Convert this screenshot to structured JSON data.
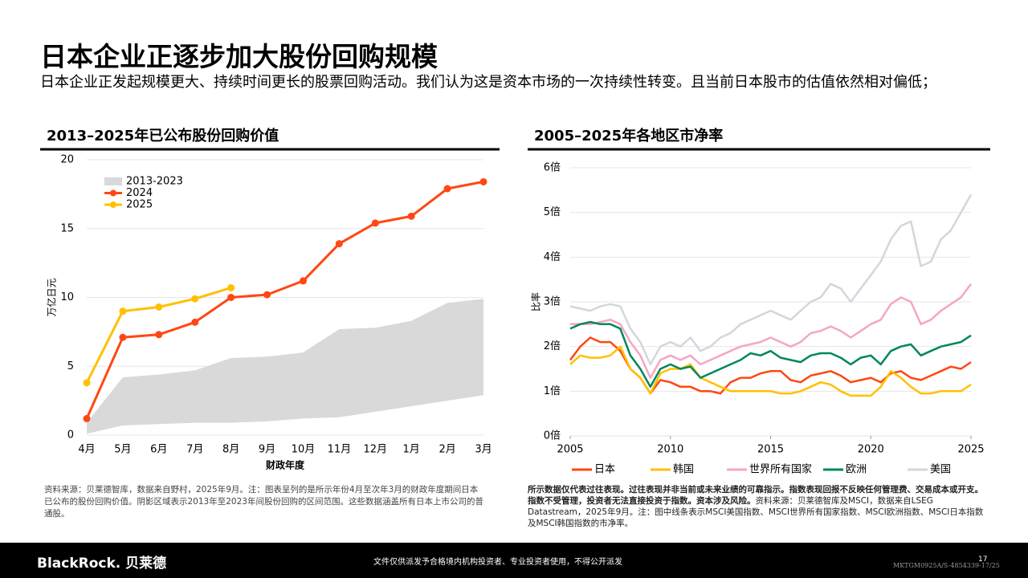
{
  "header": {
    "title": "日本企业正逐步加大股份回购规模",
    "subtitle": "日本企业正发起规模更大、持续时间更长的股票回购活动。我们认为这是资本市场的一次持续性转变。且当前日本股市的估值依然相对偏低；"
  },
  "chart_data": [
    {
      "type": "line",
      "title": "2013–2025年已公布股份回购价值",
      "xlabel": "财政年度",
      "ylabel": "万亿日元",
      "categories": [
        "4月",
        "5月",
        "6月",
        "7月",
        "8月",
        "9月",
        "10月",
        "11月",
        "12月",
        "1月",
        "2月",
        "3月"
      ],
      "band": {
        "name": "2013-2023",
        "color": "#d9d9d9",
        "high": [
          0.9,
          4.2,
          4.4,
          4.7,
          5.6,
          5.7,
          6.0,
          7.7,
          7.8,
          8.3,
          9.6,
          9.9
        ],
        "low": [
          0.1,
          0.7,
          0.8,
          0.9,
          0.9,
          1.0,
          1.2,
          1.3,
          1.7,
          2.1,
          2.5,
          2.9
        ]
      },
      "series": [
        {
          "name": "2024",
          "color": "#ff4713",
          "values": [
            1.2,
            7.1,
            7.3,
            8.2,
            10.0,
            10.2,
            11.2,
            13.9,
            15.4,
            15.9,
            17.9,
            18.4
          ]
        },
        {
          "name": "2025",
          "color": "#ffc000",
          "values": [
            3.8,
            9.0,
            9.3,
            9.9,
            10.7,
            null,
            null,
            null,
            null,
            null,
            null,
            null
          ]
        }
      ],
      "ylim": [
        0,
        20
      ],
      "yticks": [
        0,
        5,
        10,
        15,
        20
      ],
      "grid": true,
      "legend": "upper left",
      "markers": true,
      "note": "资料来源：贝莱德智库，数据来自野村，2025年9月。注：图表呈列的是所示年份4月至次年3月的财政年度期间日本已公布的股份回购价值。阴影区域表示2013年至2023年间股份回购的区间范围。这些数据涵盖所有日本上市公司的普通股。"
    },
    {
      "type": "line",
      "title": "2005–2025年各地区市净率",
      "ylabel": "比率",
      "x": [
        2005,
        2005.5,
        2006,
        2006.5,
        2007,
        2007.5,
        2008,
        2008.5,
        2009,
        2009.5,
        2010,
        2010.5,
        2011,
        2011.5,
        2012,
        2012.5,
        2013,
        2013.5,
        2014,
        2014.5,
        2015,
        2015.5,
        2016,
        2016.5,
        2017,
        2017.5,
        2018,
        2018.5,
        2019,
        2019.5,
        2020,
        2020.5,
        2021,
        2021.5,
        2022,
        2022.5,
        2023,
        2023.5,
        2024,
        2024.5,
        2025
      ],
      "xlim": [
        2005,
        2025
      ],
      "xticks": [
        2005,
        2010,
        2015,
        2020,
        2025
      ],
      "ylim": [
        0,
        6
      ],
      "yticks": [
        {
          "value": 0,
          "label": "0倍"
        },
        {
          "value": 1,
          "label": "1倍"
        },
        {
          "value": 2,
          "label": "2倍"
        },
        {
          "value": 3,
          "label": "3倍"
        },
        {
          "value": 4,
          "label": "4倍"
        },
        {
          "value": 5,
          "label": "5倍"
        },
        {
          "value": 6,
          "label": "6倍"
        }
      ],
      "grid": true,
      "legend": "bottom",
      "markers": false,
      "series": [
        {
          "name": "日本",
          "color": "#ff4713",
          "values": [
            1.7,
            2.0,
            2.2,
            2.1,
            2.1,
            1.9,
            1.5,
            1.3,
            0.95,
            1.25,
            1.2,
            1.1,
            1.1,
            1.0,
            1.0,
            0.95,
            1.2,
            1.3,
            1.3,
            1.4,
            1.45,
            1.45,
            1.25,
            1.2,
            1.35,
            1.4,
            1.45,
            1.35,
            1.2,
            1.25,
            1.3,
            1.2,
            1.4,
            1.45,
            1.3,
            1.25,
            1.35,
            1.45,
            1.55,
            1.5,
            1.65
          ]
        },
        {
          "name": "韩国",
          "color": "#ffc000",
          "values": [
            1.6,
            1.8,
            1.75,
            1.75,
            1.8,
            2.0,
            1.5,
            1.3,
            0.95,
            1.4,
            1.5,
            1.5,
            1.6,
            1.3,
            1.2,
            1.1,
            1.0,
            1.0,
            1.0,
            1.0,
            1.0,
            0.95,
            0.95,
            1.0,
            1.1,
            1.2,
            1.15,
            1.0,
            0.9,
            0.9,
            0.9,
            1.1,
            1.45,
            1.3,
            1.1,
            0.95,
            0.95,
            1.0,
            1.0,
            1.0,
            1.15
          ]
        },
        {
          "name": "世界所有国家",
          "color": "#f4a6c6",
          "values": [
            2.5,
            2.5,
            2.5,
            2.55,
            2.6,
            2.5,
            2.1,
            1.8,
            1.3,
            1.7,
            1.8,
            1.7,
            1.8,
            1.6,
            1.7,
            1.8,
            1.9,
            2.0,
            2.05,
            2.1,
            2.2,
            2.1,
            2.0,
            2.1,
            2.3,
            2.35,
            2.45,
            2.35,
            2.2,
            2.35,
            2.5,
            2.6,
            2.95,
            3.1,
            3.0,
            2.5,
            2.6,
            2.8,
            2.95,
            3.1,
            3.4
          ]
        },
        {
          "name": "欧洲",
          "color": "#00875a",
          "values": [
            2.4,
            2.5,
            2.55,
            2.5,
            2.5,
            2.4,
            1.8,
            1.5,
            1.1,
            1.5,
            1.6,
            1.5,
            1.55,
            1.3,
            1.4,
            1.5,
            1.6,
            1.7,
            1.85,
            1.8,
            1.9,
            1.75,
            1.7,
            1.65,
            1.8,
            1.85,
            1.85,
            1.75,
            1.6,
            1.75,
            1.8,
            1.6,
            1.9,
            2.0,
            2.05,
            1.8,
            1.9,
            2.0,
            2.05,
            2.1,
            2.25
          ]
        },
        {
          "name": "美国",
          "color": "#d5d5de",
          "values": [
            2.9,
            2.85,
            2.8,
            2.9,
            2.95,
            2.9,
            2.4,
            2.1,
            1.6,
            2.0,
            2.1,
            2.0,
            2.2,
            1.9,
            2.0,
            2.2,
            2.3,
            2.5,
            2.6,
            2.7,
            2.8,
            2.7,
            2.6,
            2.8,
            3.0,
            3.1,
            3.4,
            3.3,
            3.0,
            3.3,
            3.6,
            3.9,
            4.4,
            4.7,
            4.8,
            3.8,
            3.9,
            4.4,
            4.6,
            5.0,
            5.4
          ]
        }
      ],
      "note_bold": "所示数据仅代表过往表现。过往表现并非当前或未来业绩的可靠指示。指数表现回报不反映任何管理费、交易成本或开支。指数不受管理，投资者无法直接投资于指数。资本涉及风险。",
      "note": "资料来源：贝莱德智库及MSCI，数据来自LSEG Datastream，2025年9月。注：图中线条表示MSCI美国指数、MSCI世界所有国家指数、MSCI欧洲指数、MSCI日本指数及MSCI韩国指数的市净率。"
    }
  ],
  "footer": {
    "brand": "BlackRock. 贝莱德",
    "disclaimer": "文件仅供派发予合格境内机构投资者、专业投资者使用，不得公开派发",
    "code": "MKTGM0925A/S-4854339-17/25",
    "page": "17"
  }
}
